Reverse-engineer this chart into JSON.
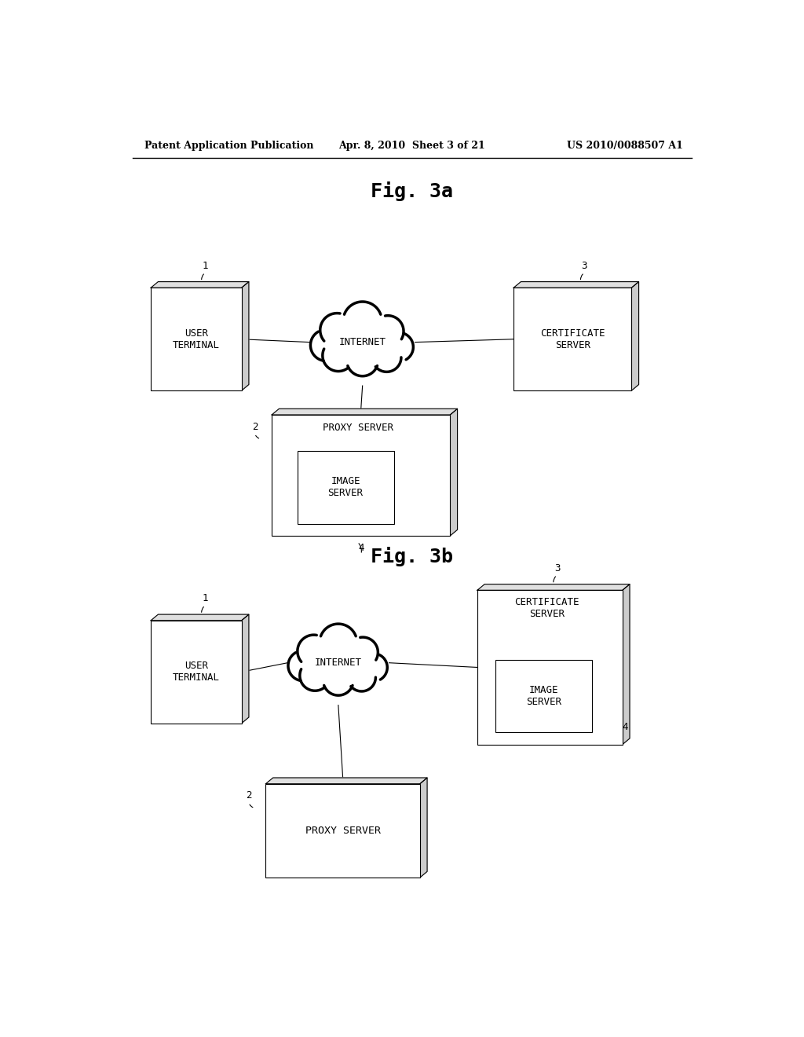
{
  "background_color": "#ffffff",
  "header_left": "Patent Application Publication",
  "header_mid": "Apr. 8, 2010  Sheet 3 of 21",
  "header_right": "US 2010/0088507 A1",
  "fig3a_title": "Fig. 3a",
  "fig3b_title": "Fig. 3b"
}
